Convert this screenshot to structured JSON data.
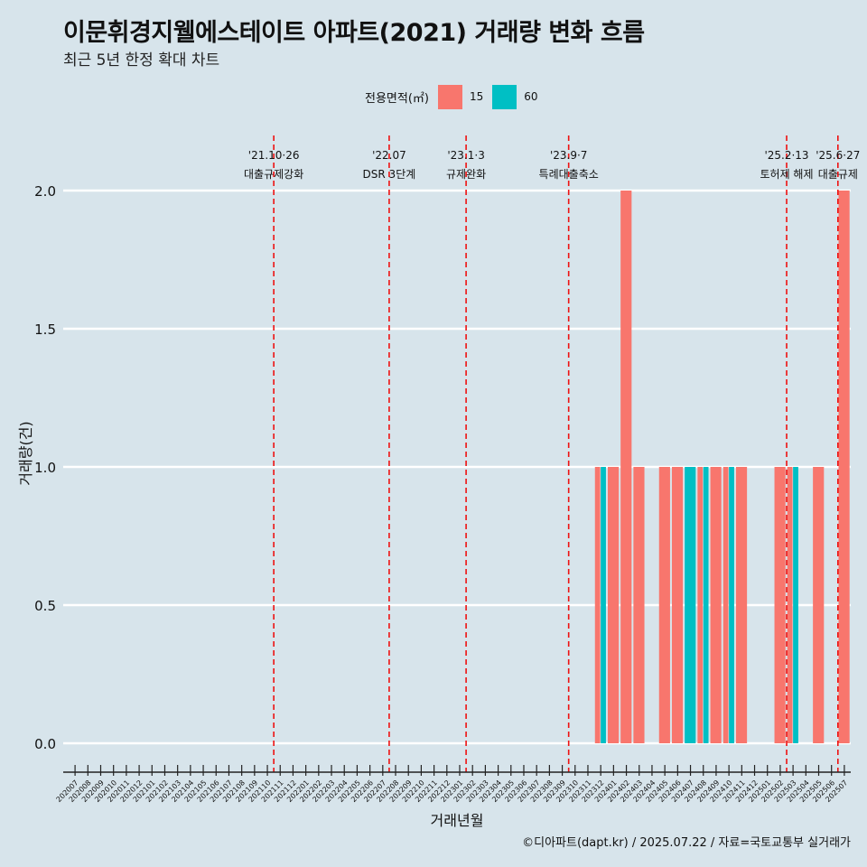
{
  "title": "이문휘경지웰에스테이트 아파트(2021) 거래량 변화 흐름",
  "subtitle": "최근 5년 한정 확대 차트",
  "legend": {
    "title": "전용면적(㎡)",
    "items": [
      {
        "label": "15",
        "color": "#F8766D"
      },
      {
        "label": "60",
        "color": "#00BFC4"
      }
    ]
  },
  "caption": "©디아파트(dapt.kr) / 2025.07.22 / 자료=국토교통부 실거래가",
  "chart_data": {
    "type": "bar",
    "xlabel": "거래년월",
    "ylabel": "거래량(건)",
    "ylim": [
      0,
      2
    ],
    "yticks": [
      "0.0",
      "0.5",
      "1.0",
      "1.5",
      "2.0"
    ],
    "grid": true,
    "legend_position": "top",
    "categories": [
      "202007",
      "202008",
      "202009",
      "202010",
      "202011",
      "202012",
      "202101",
      "202102",
      "202103",
      "202104",
      "202105",
      "202106",
      "202107",
      "202108",
      "202109",
      "202110",
      "202111",
      "202112",
      "202201",
      "202202",
      "202203",
      "202204",
      "202205",
      "202206",
      "202207",
      "202208",
      "202209",
      "202210",
      "202211",
      "202212",
      "202301",
      "202302",
      "202303",
      "202304",
      "202305",
      "202306",
      "202307",
      "202308",
      "202309",
      "202310",
      "202311",
      "202312",
      "202401",
      "202402",
      "202403",
      "202404",
      "202405",
      "202406",
      "202407",
      "202408",
      "202409",
      "202410",
      "202411",
      "202412",
      "202501",
      "202502",
      "202503",
      "202504",
      "202505",
      "202506",
      "202507"
    ],
    "series": [
      {
        "name": "15",
        "color": "#F8766D",
        "values": {
          "202312": 1,
          "202401": 1,
          "202402": 2,
          "202403": 1,
          "202405": 1,
          "202406": 1,
          "202408": 1,
          "202409": 1,
          "202410": 1,
          "202411": 1,
          "202502": 1,
          "202503": 1,
          "202505": 1,
          "202507": 2
        }
      },
      {
        "name": "60",
        "color": "#00BFC4",
        "values": {
          "202312": 1,
          "202407": 1,
          "202408": 1,
          "202410": 1,
          "202503": 1
        }
      }
    ],
    "events": [
      {
        "month": "202110",
        "date": "'21.10·26",
        "label": "대출규제강화"
      },
      {
        "month": "202207",
        "date": "'22.07",
        "label": "DSR 3단계"
      },
      {
        "month": "202301",
        "date": "'23.1·3",
        "label": "규제완화"
      },
      {
        "month": "202309",
        "date": "'23.9·7",
        "label": "특례대출축소"
      },
      {
        "month": "202502",
        "date": "'25.2·13",
        "label": "토허제 해제"
      },
      {
        "month": "202506",
        "date": "'25.6·27",
        "label": "대출규제"
      }
    ]
  }
}
